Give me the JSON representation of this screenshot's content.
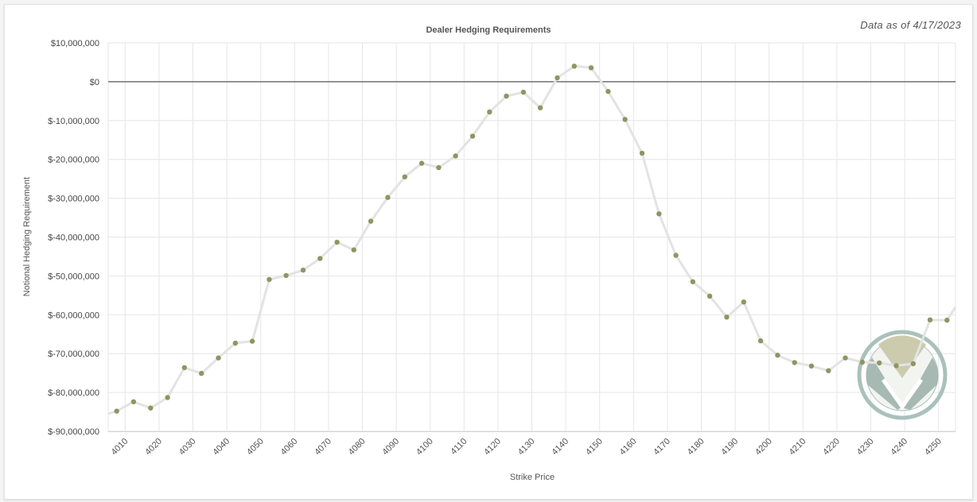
{
  "as_of": "Data as of 4/17/2023",
  "colors": {
    "line": "#e3e3e3",
    "marker": "#8f9561",
    "zero_line": "#555555",
    "grid": "#e6e6e6",
    "logo_outer": "#a9c1bb",
    "logo_fill_a": "#9db3ab",
    "logo_fill_b": "#c9c8aa"
  },
  "logo": {
    "icon": "v-shield-watermark-icon"
  },
  "chart_data": {
    "type": "line",
    "title": "Dealer Hedging Requirements",
    "xlabel": "Strike Price",
    "ylabel": "Notional Hedging Requirement",
    "ylim": [
      -90000000,
      10000000
    ],
    "xlim": [
      4005,
      4255
    ],
    "grid": true,
    "y_ticks": [
      {
        "value": 10000000,
        "label": "$10,000,000"
      },
      {
        "value": 0,
        "label": "$0"
      },
      {
        "value": -10000000,
        "label": "$-10,000,000"
      },
      {
        "value": -20000000,
        "label": "$-20,000,000"
      },
      {
        "value": -30000000,
        "label": "$-30,000,000"
      },
      {
        "value": -40000000,
        "label": "$-40,000,000"
      },
      {
        "value": -50000000,
        "label": "$-50,000,000"
      },
      {
        "value": -60000000,
        "label": "$-60,000,000"
      },
      {
        "value": -70000000,
        "label": "$-70,000,000"
      },
      {
        "value": -80000000,
        "label": "$-80,000,000"
      },
      {
        "value": -90000000,
        "label": "$-90,000,000"
      }
    ],
    "x_ticks": [
      4010,
      4020,
      4030,
      4040,
      4050,
      4060,
      4070,
      4080,
      4090,
      4100,
      4110,
      4120,
      4130,
      4140,
      4150,
      4160,
      4170,
      4180,
      4190,
      4200,
      4210,
      4220,
      4230,
      4240,
      4250
    ],
    "series": [
      {
        "x": [
          4005,
          4007.5,
          4012.5,
          4017.5,
          4022.5,
          4027.5,
          4032.5,
          4037.5,
          4042.5,
          4047.5,
          4052.5,
          4057.5,
          4062.5,
          4067.5,
          4072.5,
          4077.5,
          4082.5,
          4087.5,
          4092.5,
          4097.5,
          4102.5,
          4107.5,
          4112.5,
          4117.5,
          4122.5,
          4127.5,
          4132.5,
          4137.5,
          4142.5,
          4147.5,
          4152.5,
          4157.5,
          4162.5,
          4167.5,
          4172.5,
          4177.5,
          4182.5,
          4187.5,
          4192.5,
          4197.5,
          4202.5,
          4207.5,
          4212.5,
          4217.5,
          4222.5,
          4227.5,
          4232.5,
          4237.5,
          4242.5,
          4247.5,
          4252.5,
          4255
        ],
        "values": [
          -85500000,
          -84800000,
          -82400000,
          -84000000,
          -81300000,
          -73600000,
          -75100000,
          -71100000,
          -67300000,
          -66800000,
          -50900000,
          -49900000,
          -48500000,
          -45500000,
          -41300000,
          -43300000,
          -35900000,
          -29800000,
          -24500000,
          -21000000,
          -22100000,
          -19100000,
          -14000000,
          -7800000,
          -3700000,
          -2700000,
          -6700000,
          1000000,
          4000000,
          3600000,
          -2500000,
          -9700000,
          -18400000,
          -34000000,
          -44700000,
          -51500000,
          -55200000,
          -60600000,
          -56700000,
          -66700000,
          -70400000,
          -72300000,
          -73200000,
          -74400000,
          -71100000,
          -72200000,
          -72400000,
          -73100000,
          -72600000,
          -61300000,
          -61400000,
          -58000000
        ],
        "markers": [
          false,
          true,
          true,
          true,
          true,
          true,
          true,
          true,
          true,
          true,
          true,
          true,
          true,
          true,
          true,
          true,
          true,
          true,
          true,
          true,
          true,
          true,
          true,
          true,
          true,
          true,
          true,
          true,
          true,
          true,
          true,
          true,
          true,
          true,
          true,
          true,
          true,
          true,
          true,
          true,
          true,
          true,
          true,
          true,
          true,
          true,
          true,
          true,
          true,
          true,
          true,
          false
        ]
      }
    ]
  }
}
